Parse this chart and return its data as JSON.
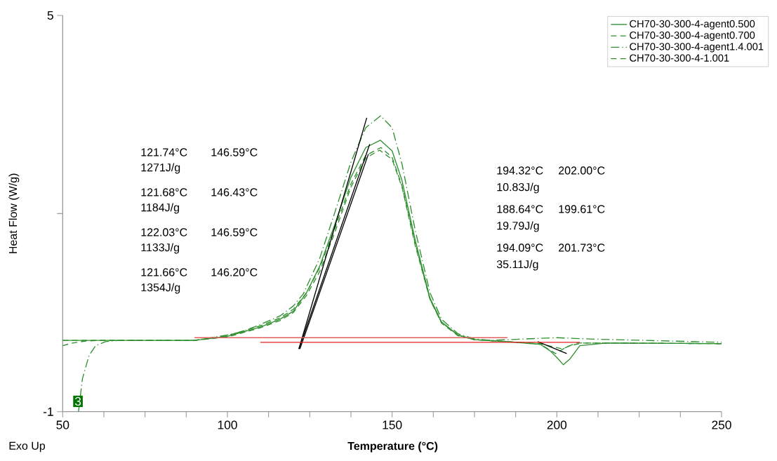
{
  "chart_data": {
    "type": "line",
    "xlabel": "**Temperature (°C)**",
    "ylabel": "Heat Flow (W/g)",
    "xlim": [
      50,
      250
    ],
    "ylim": [
      -1,
      5
    ],
    "xticks": [
      50,
      {
        "value": 62.5,
        "label": null
      },
      {
        "value": 75,
        "label": null
      },
      {
        "value": 87.5,
        "label": null
      },
      100,
      {
        "value": 112.5,
        "label": null
      },
      {
        "value": 125,
        "label": null
      },
      {
        "value": 137.5,
        "label": null
      },
      150,
      {
        "value": 162.5,
        "label": null
      },
      {
        "value": 175,
        "label": null
      },
      {
        "value": 187.5,
        "label": null
      },
      200,
      {
        "value": 212.5,
        "label": null
      },
      {
        "value": 225,
        "label": null
      },
      {
        "value": 237.5,
        "label": null
      },
      250
    ],
    "yticks": [
      -1,
      {
        "value": 2,
        "label": null
      },
      5
    ],
    "legend": "top right",
    "annotations": [
      "121.74°C",
      "146.59°C",
      "1271J/g",
      "121.68°C",
      "146.43°C",
      "1184J/g",
      "122.03°C",
      "146.59°C",
      "1133J/g",
      "121.66°C",
      "146.20°C",
      "1354J/g",
      "194.32°C",
      "202.00°C",
      "10.83J/g",
      "188.64°C",
      "199.61°C",
      "19.79J/g",
      "194.09°C",
      "201.73°C",
      "35.11J/g",
      "3",
      "Exo Up"
    ],
    "series": [
      {
        "name": "CH70-30-300-4-agent0.500",
        "color": "#2f8f2f",
        "line_style": "solid",
        "x": [
          50,
          90,
          100,
          110,
          116,
          120,
          124,
          128,
          132.5,
          137.5,
          142,
          146.4,
          150,
          153,
          157,
          161.5,
          165,
          170,
          175,
          185,
          195,
          198,
          200,
          202,
          204,
          207,
          215,
          250
        ],
        "values": [
          0.08,
          0.08,
          0.14,
          0.28,
          0.4,
          0.52,
          0.8,
          1.2,
          1.82,
          2.55,
          3.0,
          3.11,
          2.95,
          2.5,
          1.6,
          0.72,
          0.36,
          0.16,
          0.09,
          0.06,
          0.02,
          -0.08,
          -0.18,
          -0.29,
          -0.2,
          0.0,
          0.04,
          0.03
        ]
      },
      {
        "name": "CH70-30-300-4-agent0.700",
        "color": "#2f8f2f",
        "line_style": "dashed",
        "x": [
          50,
          53,
          57,
          62,
          90,
          100,
          110,
          116,
          120,
          124,
          128,
          132.5,
          137.5,
          142,
          146.6,
          150,
          153,
          157,
          161.5,
          165,
          170,
          175,
          185,
          195,
          199.6,
          203,
          206,
          215,
          250
        ],
        "values": [
          0.0,
          0.04,
          0.07,
          0.08,
          0.08,
          0.15,
          0.3,
          0.42,
          0.55,
          0.8,
          1.18,
          1.76,
          2.45,
          2.88,
          3.0,
          2.85,
          2.42,
          1.55,
          0.7,
          0.35,
          0.16,
          0.09,
          0.06,
          0.02,
          -0.12,
          -0.02,
          0.04,
          0.04,
          0.03
        ]
      },
      {
        "name": "CH70-30-300-4-agent1.4.001",
        "color": "#2f8f2f",
        "line_style": "dotted",
        "x": [
          54.8,
          56,
          58,
          60,
          63,
          67,
          90,
          100,
          105,
          110,
          116,
          120,
          123,
          128,
          132.5,
          137.5,
          142,
          146.5,
          150,
          153,
          157,
          161.5,
          165,
          170,
          175,
          180,
          190,
          200,
          210,
          250
        ],
        "values": [
          -1,
          -0.5,
          -0.15,
          0.0,
          0.06,
          0.08,
          0.08,
          0.16,
          0.22,
          0.32,
          0.45,
          0.6,
          0.78,
          1.32,
          2.0,
          2.78,
          3.3,
          3.48,
          3.3,
          2.75,
          1.75,
          0.8,
          0.4,
          0.18,
          0.1,
          0.08,
          0.1,
          0.12,
          0.1,
          0.05
        ]
      },
      {
        "name": "CH70-30-300-4-1.001",
        "color": "#2f8f2f",
        "line_style": "dashed",
        "x": [
          50,
          90,
          100,
          110,
          116,
          120,
          124,
          128,
          132.5,
          137.5,
          142,
          146.2,
          150,
          153,
          157,
          161.5,
          165,
          170,
          175,
          185,
          195,
          199,
          201.7,
          204,
          208,
          215,
          250
        ],
        "values": [
          0.08,
          0.08,
          0.13,
          0.27,
          0.38,
          0.5,
          0.76,
          1.12,
          1.7,
          2.4,
          2.84,
          2.96,
          2.82,
          2.4,
          1.52,
          0.7,
          0.34,
          0.15,
          0.09,
          0.06,
          0.03,
          -0.02,
          -0.05,
          0.0,
          0.04,
          0.04,
          0.03
        ]
      },
      {
        "color": "#000000",
        "line_style": "solid",
        "x": [
          121.7,
          142.3
        ],
        "values": [
          -0.05,
          3.45
        ]
      },
      {
        "color": "#000000",
        "line_style": "solid",
        "x": [
          121.7,
          143.2
        ],
        "values": [
          -0.05,
          3.05
        ]
      },
      {
        "color": "#000000",
        "line_style": "solid",
        "x": [
          122,
          142.8
        ],
        "values": [
          -0.05,
          2.9
        ]
      },
      {
        "color": "#000000",
        "line_style": "solid",
        "x": [
          194.2,
          203
        ],
        "values": [
          0.06,
          -0.12
        ]
      },
      {
        "color": "#e06060",
        "line_style": "solid",
        "x": [
          90,
          185
        ],
        "values": [
          0.12,
          0.12
        ]
      },
      {
        "color": "#e02020",
        "line_style": "solid",
        "x": [
          110,
          207
        ],
        "values": [
          0.05,
          0.05
        ]
      }
    ]
  }
}
